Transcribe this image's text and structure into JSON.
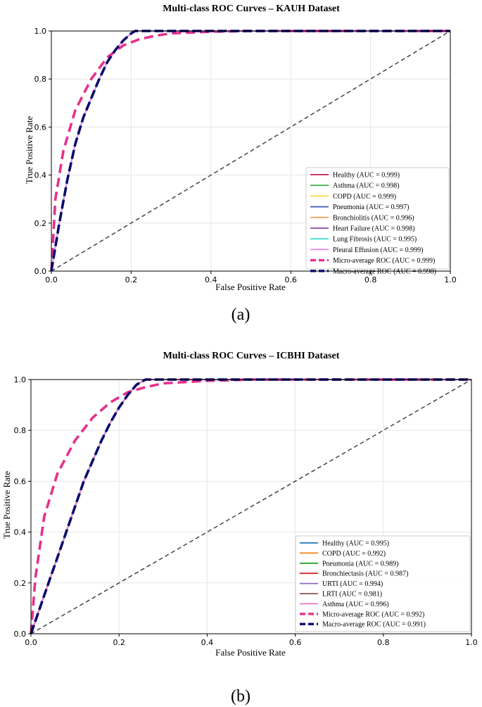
{
  "chart_data": [
    {
      "type": "line",
      "title": "Multi-class ROC Curves – KAUH Dataset",
      "xlabel": "False Positive Rate",
      "ylabel": "True Positive Rate",
      "xlim": [
        0,
        1
      ],
      "ylim": [
        0,
        1
      ],
      "xticks": [
        "0.0",
        "0.2",
        "0.4",
        "0.6",
        "0.8",
        "1.0"
      ],
      "yticks": [
        "0.0",
        "0.2",
        "0.4",
        "0.6",
        "0.8",
        "1.0"
      ],
      "grid": true,
      "legend_position": "bottom-right",
      "caption": "(a)",
      "series": [
        {
          "name": "Healthy (AUC = 0.999)",
          "color": "#c2185b",
          "style": "solid"
        },
        {
          "name": "Asthma (AUC = 0.998)",
          "color": "#4caf50",
          "style": "solid"
        },
        {
          "name": "COPD (AUC = 0.999)",
          "color": "#fdd835",
          "style": "solid"
        },
        {
          "name": "Pneumonia (AUC = 0.997)",
          "color": "#3f51b5",
          "style": "solid"
        },
        {
          "name": "Bronchiolitis (AUC = 0.996)",
          "color": "#f4a460",
          "style": "solid"
        },
        {
          "name": "Heart Failure (AUC = 0.998)",
          "color": "#8e44ad",
          "style": "solid"
        },
        {
          "name": "Lung Fibrosis (AUC = 0.995)",
          "color": "#40e0d0",
          "style": "solid"
        },
        {
          "name": "Pleural Effusion (AUC = 0.999)",
          "color": "#ee82ee",
          "style": "solid"
        },
        {
          "name": "Micro-average ROC (AUC = 0.999)",
          "color": "#e6308a",
          "style": "dashed"
        },
        {
          "name": "Macro-average ROC (AUC = 0.998)",
          "color": "#0a0a6e",
          "style": "dashed"
        }
      ],
      "curves": {
        "micro": {
          "x": [
            0,
            0.01,
            0.03,
            0.06,
            0.1,
            0.14,
            0.18,
            0.22,
            0.26,
            0.3,
            0.4,
            0.5,
            1.0
          ],
          "y": [
            0,
            0.3,
            0.5,
            0.67,
            0.8,
            0.89,
            0.94,
            0.965,
            0.98,
            0.99,
            0.997,
            1.0,
            1.0
          ]
        },
        "macro": {
          "x": [
            0,
            0.02,
            0.04,
            0.06,
            0.08,
            0.1,
            0.12,
            0.14,
            0.16,
            0.18,
            0.2,
            0.21,
            1.0
          ],
          "y": [
            0,
            0.2,
            0.38,
            0.53,
            0.64,
            0.72,
            0.8,
            0.87,
            0.92,
            0.96,
            0.99,
            1.0,
            1.0
          ]
        },
        "diagonal": {
          "x": [
            0,
            1
          ],
          "y": [
            0,
            1
          ]
        }
      }
    },
    {
      "type": "line",
      "title": "Multi-class ROC Curves – ICBHI Dataset",
      "xlabel": "False Positive Rate",
      "ylabel": "True Positive Rate",
      "xlim": [
        0,
        1
      ],
      "ylim": [
        0,
        1
      ],
      "xticks": [
        "0.0",
        "0.2",
        "0.4",
        "0.6",
        "0.8",
        "1.0"
      ],
      "yticks": [
        "0.0",
        "0.2",
        "0.4",
        "0.6",
        "0.8",
        "1.0"
      ],
      "grid": true,
      "legend_position": "bottom-right",
      "caption": "(b)",
      "series": [
        {
          "name": "Healthy (AUC = 0.995)",
          "color": "#1f77b4",
          "style": "solid"
        },
        {
          "name": "COPD (AUC = 0.992)",
          "color": "#ff7f0e",
          "style": "solid"
        },
        {
          "name": "Pneumonia (AUC = 0.989)",
          "color": "#2ca02c",
          "style": "solid"
        },
        {
          "name": "Bronchiectasis (AUC = 0.987)",
          "color": "#d62728",
          "style": "solid"
        },
        {
          "name": "URTI (AUC = 0.994)",
          "color": "#9467bd",
          "style": "solid"
        },
        {
          "name": "LRTI (AUC = 0.981)",
          "color": "#8c564b",
          "style": "solid"
        },
        {
          "name": "Asthma (AUC = 0.996)",
          "color": "#e377c2",
          "style": "solid"
        },
        {
          "name": "Micro-average ROC (AUC = 0.992)",
          "color": "#e6308a",
          "style": "dashed"
        },
        {
          "name": "Macro-average ROC (AUC = 0.991)",
          "color": "#0a0a6e",
          "style": "dashed"
        }
      ],
      "curves": {
        "micro": {
          "x": [
            0,
            0.01,
            0.03,
            0.06,
            0.1,
            0.14,
            0.18,
            0.22,
            0.26,
            0.3,
            0.4,
            0.5,
            1.0
          ],
          "y": [
            0,
            0.22,
            0.46,
            0.63,
            0.76,
            0.85,
            0.91,
            0.95,
            0.97,
            0.985,
            0.995,
            1.0,
            1.0
          ]
        },
        "macro": {
          "x": [
            0,
            0.02,
            0.04,
            0.06,
            0.08,
            0.1,
            0.12,
            0.14,
            0.16,
            0.18,
            0.2,
            0.22,
            0.24,
            0.26,
            1.0
          ],
          "y": [
            0,
            0.1,
            0.2,
            0.3,
            0.4,
            0.5,
            0.6,
            0.68,
            0.76,
            0.83,
            0.89,
            0.94,
            0.98,
            1.0,
            1.0
          ]
        },
        "diagonal": {
          "x": [
            0,
            1
          ],
          "y": [
            0,
            1
          ]
        }
      }
    }
  ]
}
